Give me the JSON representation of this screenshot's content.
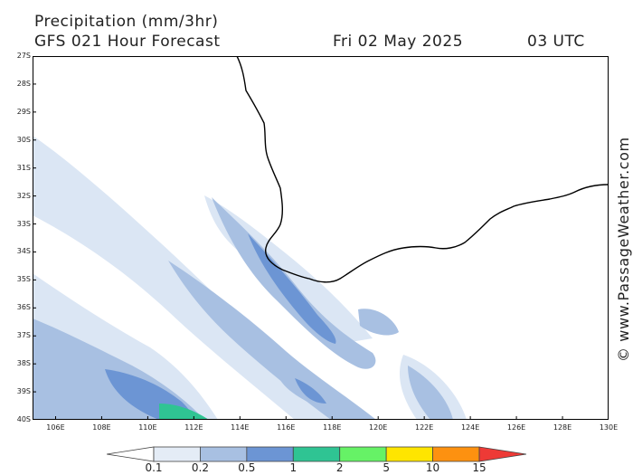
{
  "header": {
    "title": "Precipitation (mm/3hr)",
    "model": "GFS 021 Hour Forecast",
    "date": "Fri 02 May 2025",
    "time": "03 UTC"
  },
  "map": {
    "lat_labels": [
      "27S",
      "28S",
      "29S",
      "30S",
      "31S",
      "32S",
      "33S",
      "34S",
      "35S",
      "36S",
      "37S",
      "38S",
      "39S",
      "40S"
    ],
    "lon_labels": [
      "106E",
      "108E",
      "110E",
      "112E",
      "114E",
      "116E",
      "118E",
      "120E",
      "122E",
      "124E",
      "126E",
      "128E",
      "130E"
    ],
    "lat_range": [
      -27,
      -40
    ],
    "lon_range": [
      105,
      130
    ]
  },
  "watermark": "© www.PassageWeather.com",
  "colorbar": {
    "labels": [
      "0.1",
      "0.2",
      "0.5",
      "1",
      "2",
      "5",
      "10",
      "15"
    ],
    "colors": [
      "#e4ecf6",
      "#a8c0e2",
      "#6c95d4",
      "#2fc493",
      "#66f266",
      "#fee500",
      "#fd9110",
      "#ee3a36"
    ]
  },
  "colors": {
    "light": "#dbe6f4",
    "medium": "#a8c0e2",
    "dark": "#6c95d4",
    "green": "#2fc493"
  }
}
